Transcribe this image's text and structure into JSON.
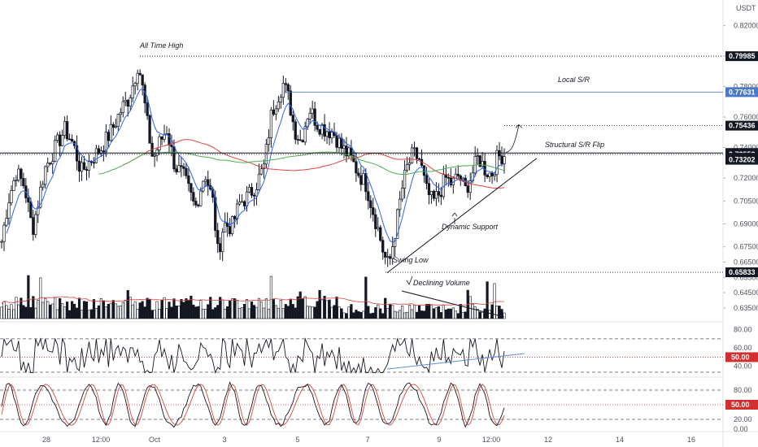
{
  "chart_data": [
    {
      "type": "candlestick",
      "panel": "price",
      "currency": "USDT",
      "y_ticks": [
        "0.82000",
        "0.80000",
        "0.78000",
        "0.76000",
        "0.74000",
        "0.72000",
        "0.70500",
        "0.69000",
        "0.67500",
        "0.66500",
        "0.65500",
        "0.64500",
        "0.63500"
      ],
      "ylim": [
        0.628,
        0.826
      ],
      "price_tags": [
        {
          "label": "0.79985",
          "value": 0.79985,
          "style": "dark"
        },
        {
          "label": "0.77631",
          "value": 0.77631,
          "style": "blue"
        },
        {
          "label": "0.75436",
          "value": 0.75436,
          "style": "dark"
        },
        {
          "label": "0.73645",
          "value": 0.73645,
          "style": "dark"
        },
        {
          "label": "0.73552",
          "value": 0.73552,
          "style": "dark"
        },
        {
          "label": "30:16",
          "value": 0.7333,
          "style": "dark"
        },
        {
          "label": "0.73202",
          "value": 0.73202,
          "style": "dark"
        },
        {
          "label": "0.65833",
          "value": 0.65833,
          "style": "dark"
        }
      ],
      "annotations": [
        "All Time High",
        "Local S/R",
        "Structural S/R Flip",
        "Dynamic Support",
        "Swing Low",
        "Declining Volume"
      ],
      "series": [
        {
          "name": "",
          "color": "#2962ff",
          "kind": "ema-short"
        },
        {
          "name": "",
          "color": "#e0413d",
          "kind": "sma-long"
        },
        {
          "name": "",
          "color": "#4caf50",
          "kind": "sma-mid"
        }
      ],
      "keypoints": [
        [
          0,
          0.672
        ],
        [
          10,
          0.705
        ],
        [
          20,
          0.724
        ],
        [
          30,
          0.715
        ],
        [
          40,
          0.686
        ],
        [
          55,
          0.726
        ],
        [
          70,
          0.742
        ],
        [
          80,
          0.752
        ],
        [
          90,
          0.742
        ],
        [
          100,
          0.724
        ],
        [
          115,
          0.734
        ],
        [
          125,
          0.74
        ],
        [
          138,
          0.752
        ],
        [
          150,
          0.766
        ],
        [
          158,
          0.772
        ],
        [
          165,
          0.784
        ],
        [
          170,
          0.796
        ],
        [
          176,
          0.776
        ],
        [
          182,
          0.752
        ],
        [
          188,
          0.732
        ],
        [
          195,
          0.742
        ],
        [
          205,
          0.752
        ],
        [
          215,
          0.728
        ],
        [
          225,
          0.722
        ],
        [
          232,
          0.712
        ],
        [
          240,
          0.7
        ],
        [
          252,
          0.724
        ],
        [
          262,
          0.704
        ],
        [
          268,
          0.67
        ],
        [
          275,
          0.69
        ],
        [
          285,
          0.688
        ],
        [
          295,
          0.704
        ],
        [
          305,
          0.708
        ],
        [
          315,
          0.716
        ],
        [
          325,
          0.728
        ],
        [
          333,
          0.76
        ],
        [
          340,
          0.772
        ],
        [
          348,
          0.782
        ],
        [
          355,
          0.772
        ],
        [
          362,
          0.752
        ],
        [
          370,
          0.744
        ],
        [
          380,
          0.766
        ],
        [
          390,
          0.756
        ],
        [
          400,
          0.752
        ],
        [
          410,
          0.75
        ],
        [
          420,
          0.74
        ],
        [
          430,
          0.734
        ],
        [
          440,
          0.724
        ],
        [
          450,
          0.716
        ],
        [
          458,
          0.7
        ],
        [
          466,
          0.684
        ],
        [
          472,
          0.67
        ],
        [
          478,
          0.662
        ],
        [
          486,
          0.686
        ],
        [
          494,
          0.712
        ],
        [
          500,
          0.726
        ],
        [
          508,
          0.736
        ],
        [
          516,
          0.732
        ],
        [
          524,
          0.712
        ],
        [
          532,
          0.704
        ],
        [
          540,
          0.71
        ],
        [
          548,
          0.72
        ],
        [
          556,
          0.716
        ],
        [
          564,
          0.722
        ],
        [
          572,
          0.712
        ],
        [
          580,
          0.722
        ],
        [
          588,
          0.734
        ],
        [
          596,
          0.726
        ],
        [
          604,
          0.722
        ],
        [
          612,
          0.734
        ],
        [
          620,
          0.7355
        ]
      ]
    },
    {
      "type": "bar",
      "panel": "volume",
      "annotation": "Declining Volume"
    },
    {
      "type": "line",
      "panel": "rsi",
      "y_ticks": [
        "80.00",
        "60.00",
        "40.00"
      ],
      "levels": [
        70,
        50,
        30
      ],
      "ylim": [
        30,
        85
      ],
      "current_label": "50.00"
    },
    {
      "type": "line",
      "panel": "stoch",
      "y_ticks": [
        "80.00",
        "20.00",
        "0.00"
      ],
      "levels": [
        80,
        50,
        20
      ],
      "ylim": [
        0,
        100
      ],
      "current_label": "50.00"
    }
  ],
  "x_axis": {
    "labels": [
      "28",
      "12:00",
      "Oct",
      "3",
      "5",
      "7",
      "9",
      "12:00",
      "12",
      "14",
      "16"
    ]
  },
  "colors": {
    "up": "#ffffff",
    "down": "#131722",
    "ema": "#2962ff",
    "red_ma": "#e0413d",
    "green_ma": "#4caf50",
    "trendline": "#131722",
    "rsi_trend": "#5b8de8",
    "level_red": "#d32f2f",
    "tag_blue": "#4a78c6",
    "tag_dark": "#131722"
  }
}
